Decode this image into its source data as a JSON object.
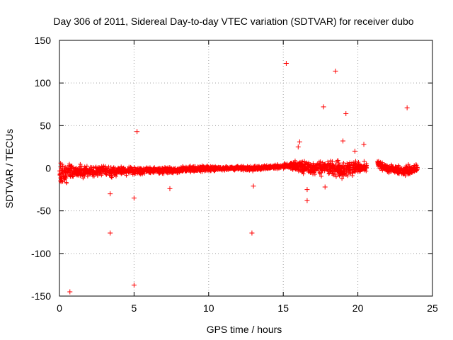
{
  "chart_data": {
    "type": "scatter",
    "title": "Day 306 of 2011, Sidereal Day-to-day VTEC variation (SDTVAR) for receiver dubo",
    "xlabel": "GPS time / hours",
    "ylabel": "SDTVAR / TECUs",
    "xlim": [
      0,
      25
    ],
    "ylim": [
      -150,
      150
    ],
    "xticks": [
      0,
      5,
      10,
      15,
      20,
      25
    ],
    "yticks": [
      -150,
      -100,
      -50,
      0,
      50,
      100,
      150
    ],
    "grid": true,
    "marker": "+",
    "series_color": "#ff0000",
    "dense_band": {
      "description": "dense band of points from ~0 to ~24 h around 0 TECU",
      "x_start": 0.0,
      "x_end": 24.0,
      "gaps": [
        [
          20.6,
          21.3
        ]
      ],
      "envelope": [
        {
          "x": 0.0,
          "lo": -22,
          "hi": 10
        },
        {
          "x": 1.0,
          "lo": -15,
          "hi": 6
        },
        {
          "x": 2.0,
          "lo": -12,
          "hi": 5
        },
        {
          "x": 3.0,
          "lo": -10,
          "hi": 5
        },
        {
          "x": 3.5,
          "lo": -16,
          "hi": 6
        },
        {
          "x": 4.0,
          "lo": -8,
          "hi": 3
        },
        {
          "x": 5.0,
          "lo": -10,
          "hi": 3
        },
        {
          "x": 6.0,
          "lo": -7,
          "hi": 2
        },
        {
          "x": 7.0,
          "lo": -8,
          "hi": 2
        },
        {
          "x": 8.0,
          "lo": -6,
          "hi": 2
        },
        {
          "x": 9.0,
          "lo": -6,
          "hi": 5
        },
        {
          "x": 10.0,
          "lo": -5,
          "hi": 4
        },
        {
          "x": 11.0,
          "lo": -3,
          "hi": 3
        },
        {
          "x": 12.0,
          "lo": -3,
          "hi": 3
        },
        {
          "x": 13.0,
          "lo": -4,
          "hi": 4
        },
        {
          "x": 14.0,
          "lo": -2,
          "hi": 4
        },
        {
          "x": 15.0,
          "lo": -1,
          "hi": 6
        },
        {
          "x": 16.0,
          "lo": -6,
          "hi": 12
        },
        {
          "x": 17.0,
          "lo": -10,
          "hi": 8
        },
        {
          "x": 18.0,
          "lo": -10,
          "hi": 12
        },
        {
          "x": 19.0,
          "lo": -15,
          "hi": 12
        },
        {
          "x": 20.0,
          "lo": -8,
          "hi": 10
        },
        {
          "x": 20.6,
          "lo": -5,
          "hi": 8
        },
        {
          "x": 21.3,
          "lo": -3,
          "hi": 14
        },
        {
          "x": 22.0,
          "lo": -6,
          "hi": 6
        },
        {
          "x": 23.0,
          "lo": -12,
          "hi": 6
        },
        {
          "x": 24.0,
          "lo": -8,
          "hi": 6
        }
      ]
    },
    "points": [
      {
        "x": 0.7,
        "y": -145
      },
      {
        "x": 3.4,
        "y": -76
      },
      {
        "x": 3.4,
        "y": -30
      },
      {
        "x": 5.0,
        "y": -137
      },
      {
        "x": 5.0,
        "y": -35
      },
      {
        "x": 5.2,
        "y": 43
      },
      {
        "x": 7.4,
        "y": -24
      },
      {
        "x": 12.9,
        "y": -76
      },
      {
        "x": 13.0,
        "y": -21
      },
      {
        "x": 15.2,
        "y": 123
      },
      {
        "x": 16.6,
        "y": -25
      },
      {
        "x": 16.6,
        "y": -38
      },
      {
        "x": 17.7,
        "y": 72
      },
      {
        "x": 17.8,
        "y": -22
      },
      {
        "x": 18.5,
        "y": 114
      },
      {
        "x": 19.2,
        "y": 64
      },
      {
        "x": 20.4,
        "y": 28
      },
      {
        "x": 23.3,
        "y": 71
      },
      {
        "x": 16.1,
        "y": 31
      },
      {
        "x": 19.0,
        "y": 32
      },
      {
        "x": 19.8,
        "y": 20
      },
      {
        "x": 16.0,
        "y": 25
      }
    ]
  }
}
